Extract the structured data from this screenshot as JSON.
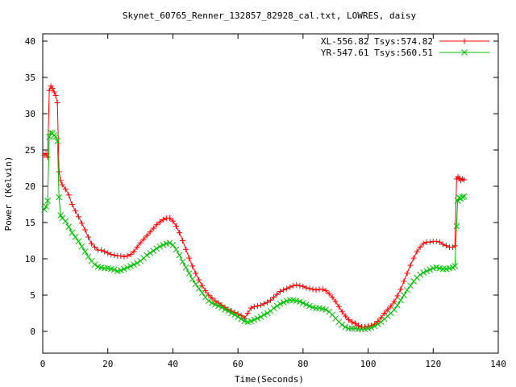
{
  "chart_data": {
    "type": "line",
    "title": "Skynet_60765_Renner_132857_82928_cal.txt, LOWRES, daisy",
    "xlabel": "Time(Seconds)",
    "ylabel": "Power (Kelvin)",
    "xlim": [
      0,
      140
    ],
    "ylim": [
      -3,
      41
    ],
    "xticks": [
      "0",
      "20",
      "40",
      "60",
      "80",
      "100",
      "120",
      "140"
    ],
    "yticks": [
      "0",
      "5",
      "10",
      "15",
      "20",
      "25",
      "30",
      "35",
      "40"
    ],
    "grid": false,
    "legend_position": "top-right",
    "series": [
      {
        "name": "XL-556.82 Tsys:574.82",
        "color": "#ff0000",
        "marker": "plus",
        "points": [
          [
            0.5,
            24.3
          ],
          [
            1.0,
            24.5
          ],
          [
            1.5,
            24.0
          ],
          [
            2.0,
            33.2
          ],
          [
            2.5,
            33.8
          ],
          [
            3.0,
            33.5
          ],
          [
            3.5,
            33.0
          ],
          [
            4.0,
            32.5
          ],
          [
            4.5,
            31.5
          ],
          [
            5.0,
            22.0
          ],
          [
            5.5,
            20.8
          ],
          [
            6.0,
            20.2
          ],
          [
            7.0,
            19.6
          ],
          [
            8.0,
            18.8
          ],
          [
            9.0,
            17.5
          ],
          [
            10.0,
            16.6
          ],
          [
            11.0,
            15.8
          ],
          [
            12.0,
            14.9
          ],
          [
            13.0,
            14.0
          ],
          [
            14.0,
            13.0
          ],
          [
            15.0,
            12.1
          ],
          [
            16.0,
            11.6
          ],
          [
            17.0,
            11.2
          ],
          [
            18.0,
            11.2
          ],
          [
            19.0,
            11.0
          ],
          [
            20.0,
            10.8
          ],
          [
            21.0,
            10.6
          ],
          [
            22.0,
            10.5
          ],
          [
            23.0,
            10.4
          ],
          [
            24.0,
            10.4
          ],
          [
            25.0,
            10.3
          ],
          [
            26.0,
            10.4
          ],
          [
            27.0,
            10.6
          ],
          [
            28.0,
            11.0
          ],
          [
            29.0,
            11.6
          ],
          [
            30.0,
            12.2
          ],
          [
            31.0,
            12.7
          ],
          [
            32.0,
            13.2
          ],
          [
            33.0,
            13.7
          ],
          [
            34.0,
            14.2
          ],
          [
            35.0,
            14.7
          ],
          [
            36.0,
            15.1
          ],
          [
            37.0,
            15.4
          ],
          [
            38.0,
            15.6
          ],
          [
            39.0,
            15.6
          ],
          [
            40.0,
            15.2
          ],
          [
            41.0,
            14.5
          ],
          [
            42.0,
            13.6
          ],
          [
            43.0,
            12.5
          ],
          [
            44.0,
            11.3
          ],
          [
            45.0,
            10.1
          ],
          [
            46.0,
            9.0
          ],
          [
            47.0,
            8.0
          ],
          [
            48.0,
            7.1
          ],
          [
            49.0,
            6.3
          ],
          [
            50.0,
            5.6
          ],
          [
            51.0,
            5.0
          ],
          [
            52.0,
            4.6
          ],
          [
            53.0,
            4.2
          ],
          [
            54.0,
            3.9
          ],
          [
            55.0,
            3.6
          ],
          [
            56.0,
            3.3
          ],
          [
            57.0,
            3.0
          ],
          [
            58.0,
            2.8
          ],
          [
            59.0,
            2.6
          ],
          [
            60.0,
            2.4
          ],
          [
            61.0,
            2.2
          ],
          [
            62.0,
            1.8
          ],
          [
            63.0,
            2.5
          ],
          [
            64.0,
            3.2
          ],
          [
            65.0,
            3.4
          ],
          [
            66.0,
            3.5
          ],
          [
            67.0,
            3.6
          ],
          [
            68.0,
            3.8
          ],
          [
            69.0,
            4.0
          ],
          [
            70.0,
            4.3
          ],
          [
            71.0,
            4.7
          ],
          [
            72.0,
            5.1
          ],
          [
            73.0,
            5.5
          ],
          [
            74.0,
            5.7
          ],
          [
            75.0,
            5.9
          ],
          [
            76.0,
            6.1
          ],
          [
            77.0,
            6.3
          ],
          [
            78.0,
            6.4
          ],
          [
            79.0,
            6.3
          ],
          [
            80.0,
            6.2
          ],
          [
            81.0,
            6.0
          ],
          [
            82.0,
            5.9
          ],
          [
            83.0,
            5.8
          ],
          [
            84.0,
            5.7
          ],
          [
            85.0,
            5.8
          ],
          [
            86.0,
            5.8
          ],
          [
            87.0,
            5.6
          ],
          [
            88.0,
            5.2
          ],
          [
            89.0,
            4.7
          ],
          [
            90.0,
            4.1
          ],
          [
            91.0,
            3.4
          ],
          [
            92.0,
            2.7
          ],
          [
            93.0,
            2.1
          ],
          [
            94.0,
            1.6
          ],
          [
            95.0,
            1.3
          ],
          [
            96.0,
            1.1
          ],
          [
            97.0,
            0.8
          ],
          [
            98.0,
            0.6
          ],
          [
            99.0,
            0.6
          ],
          [
            100.0,
            0.7
          ],
          [
            101.0,
            0.8
          ],
          [
            102.0,
            1.0
          ],
          [
            103.0,
            1.4
          ],
          [
            104.0,
            1.9
          ],
          [
            105.0,
            2.5
          ],
          [
            106.0,
            3.0
          ],
          [
            107.0,
            3.5
          ],
          [
            108.0,
            4.1
          ],
          [
            109.0,
            4.9
          ],
          [
            110.0,
            5.8
          ],
          [
            111.0,
            6.9
          ],
          [
            112.0,
            8.0
          ],
          [
            113.0,
            9.1
          ],
          [
            114.0,
            10.1
          ],
          [
            115.0,
            11.0
          ],
          [
            116.0,
            11.6
          ],
          [
            117.0,
            12.1
          ],
          [
            118.0,
            12.3
          ],
          [
            119.0,
            12.3
          ],
          [
            120.0,
            12.4
          ],
          [
            121.0,
            12.4
          ],
          [
            122.0,
            12.3
          ],
          [
            123.0,
            12.0
          ],
          [
            124.0,
            11.8
          ],
          [
            125.0,
            11.6
          ],
          [
            126.0,
            11.6
          ],
          [
            126.7,
            11.8
          ],
          [
            127.2,
            21.0
          ],
          [
            127.6,
            21.3
          ],
          [
            128.0,
            21.1
          ],
          [
            128.5,
            20.8
          ],
          [
            129.0,
            21.0
          ],
          [
            129.5,
            20.9
          ]
        ]
      },
      {
        "name": "YR-547.61 Tsys:560.51",
        "color": "#00c000",
        "marker": "cross",
        "points": [
          [
            0.5,
            16.8
          ],
          [
            1.0,
            17.2
          ],
          [
            1.5,
            18.0
          ],
          [
            2.0,
            26.8
          ],
          [
            2.5,
            27.4
          ],
          [
            3.0,
            27.3
          ],
          [
            3.5,
            27.0
          ],
          [
            4.0,
            26.8
          ],
          [
            4.5,
            26.2
          ],
          [
            5.0,
            18.5
          ],
          [
            5.5,
            16.0
          ],
          [
            6.0,
            15.6
          ],
          [
            7.0,
            15.2
          ],
          [
            8.0,
            14.4
          ],
          [
            9.0,
            13.6
          ],
          [
            10.0,
            13.0
          ],
          [
            11.0,
            12.4
          ],
          [
            12.0,
            11.7
          ],
          [
            13.0,
            11.0
          ],
          [
            14.0,
            10.3
          ],
          [
            15.0,
            9.7
          ],
          [
            16.0,
            9.2
          ],
          [
            17.0,
            8.9
          ],
          [
            18.0,
            8.8
          ],
          [
            19.0,
            8.7
          ],
          [
            20.0,
            8.7
          ],
          [
            21.0,
            8.6
          ],
          [
            22.0,
            8.5
          ],
          [
            23.0,
            8.3
          ],
          [
            24.0,
            8.4
          ],
          [
            25.0,
            8.6
          ],
          [
            26.0,
            8.8
          ],
          [
            27.0,
            9.0
          ],
          [
            28.0,
            9.2
          ],
          [
            29.0,
            9.4
          ],
          [
            30.0,
            9.7
          ],
          [
            31.0,
            10.1
          ],
          [
            32.0,
            10.5
          ],
          [
            33.0,
            10.8
          ],
          [
            34.0,
            11.1
          ],
          [
            35.0,
            11.4
          ],
          [
            36.0,
            11.7
          ],
          [
            37.0,
            11.9
          ],
          [
            38.0,
            12.1
          ],
          [
            39.0,
            12.2
          ],
          [
            40.0,
            11.9
          ],
          [
            41.0,
            11.3
          ],
          [
            42.0,
            10.5
          ],
          [
            43.0,
            9.6
          ],
          [
            44.0,
            8.8
          ],
          [
            45.0,
            8.0
          ],
          [
            46.0,
            7.2
          ],
          [
            47.0,
            6.5
          ],
          [
            48.0,
            5.9
          ],
          [
            49.0,
            5.3
          ],
          [
            50.0,
            4.7
          ],
          [
            51.0,
            4.2
          ],
          [
            52.0,
            3.9
          ],
          [
            53.0,
            3.7
          ],
          [
            54.0,
            3.5
          ],
          [
            55.0,
            3.3
          ],
          [
            56.0,
            3.0
          ],
          [
            57.0,
            2.8
          ],
          [
            58.0,
            2.5
          ],
          [
            59.0,
            2.3
          ],
          [
            60.0,
            2.0
          ],
          [
            61.0,
            1.7
          ],
          [
            62.0,
            1.4
          ],
          [
            63.0,
            1.3
          ],
          [
            64.0,
            1.4
          ],
          [
            65.0,
            1.6
          ],
          [
            66.0,
            1.8
          ],
          [
            67.0,
            2.0
          ],
          [
            68.0,
            2.3
          ],
          [
            69.0,
            2.5
          ],
          [
            70.0,
            2.8
          ],
          [
            71.0,
            3.2
          ],
          [
            72.0,
            3.5
          ],
          [
            73.0,
            3.8
          ],
          [
            74.0,
            4.0
          ],
          [
            75.0,
            4.2
          ],
          [
            76.0,
            4.3
          ],
          [
            77.0,
            4.3
          ],
          [
            78.0,
            4.2
          ],
          [
            79.0,
            4.1
          ],
          [
            80.0,
            3.9
          ],
          [
            81.0,
            3.7
          ],
          [
            82.0,
            3.5
          ],
          [
            83.0,
            3.3
          ],
          [
            84.0,
            3.2
          ],
          [
            85.0,
            3.2
          ],
          [
            86.0,
            3.1
          ],
          [
            87.0,
            3.0
          ],
          [
            88.0,
            2.7
          ],
          [
            89.0,
            2.3
          ],
          [
            90.0,
            1.8
          ],
          [
            91.0,
            1.3
          ],
          [
            92.0,
            0.9
          ],
          [
            93.0,
            0.6
          ],
          [
            94.0,
            0.4
          ],
          [
            95.0,
            0.4
          ],
          [
            96.0,
            0.4
          ],
          [
            97.0,
            0.3
          ],
          [
            98.0,
            0.3
          ],
          [
            99.0,
            0.3
          ],
          [
            100.0,
            0.4
          ],
          [
            101.0,
            0.5
          ],
          [
            102.0,
            0.7
          ],
          [
            103.0,
            1.0
          ],
          [
            104.0,
            1.3
          ],
          [
            105.0,
            1.7
          ],
          [
            106.0,
            2.1
          ],
          [
            107.0,
            2.5
          ],
          [
            108.0,
            3.0
          ],
          [
            109.0,
            3.6
          ],
          [
            110.0,
            4.3
          ],
          [
            111.0,
            5.0
          ],
          [
            112.0,
            5.7
          ],
          [
            113.0,
            6.3
          ],
          [
            114.0,
            6.9
          ],
          [
            115.0,
            7.4
          ],
          [
            116.0,
            7.8
          ],
          [
            117.0,
            8.1
          ],
          [
            118.0,
            8.3
          ],
          [
            119.0,
            8.5
          ],
          [
            120.0,
            8.7
          ],
          [
            121.0,
            8.8
          ],
          [
            122.0,
            8.7
          ],
          [
            123.0,
            8.6
          ],
          [
            124.0,
            8.6
          ],
          [
            125.0,
            8.7
          ],
          [
            126.0,
            8.8
          ],
          [
            126.7,
            9.0
          ],
          [
            127.2,
            14.5
          ],
          [
            127.5,
            18.0
          ],
          [
            128.0,
            18.4
          ],
          [
            128.5,
            18.3
          ],
          [
            129.0,
            18.5
          ],
          [
            129.5,
            18.6
          ]
        ]
      }
    ]
  }
}
